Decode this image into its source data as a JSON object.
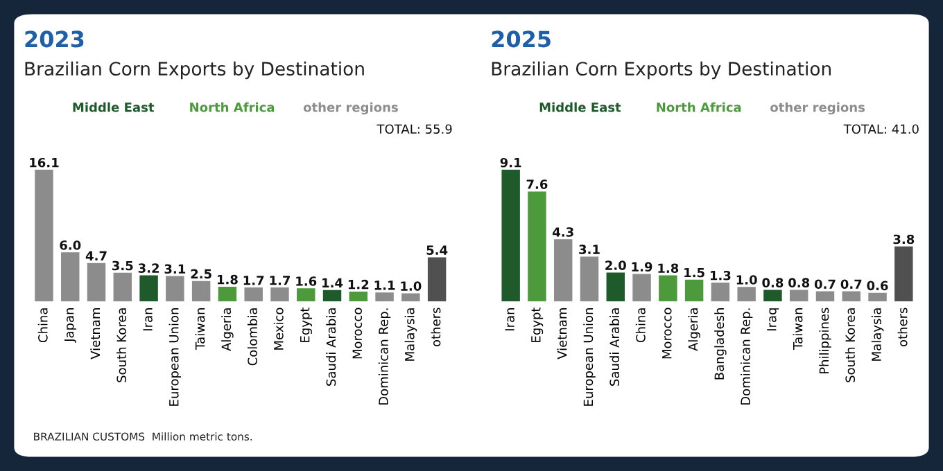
{
  "chart_data": [
    {
      "type": "bar",
      "title": "2023",
      "subtitle": "Brazilian Corn Exports by Destination",
      "categories": [
        "China",
        "Japan",
        "Vietnam",
        "South Korea",
        "Iran",
        "European Union",
        "Taiwan",
        "Algeria",
        "Colombia",
        "Mexico",
        "Egypt",
        "Saudi Arabia",
        "Morocco",
        "Dominican Rep.",
        "Malaysia",
        "others"
      ],
      "series": [
        {
          "name": "Middle East",
          "color": "#1f5a2a",
          "values": [
            null,
            null,
            null,
            null,
            3.2,
            null,
            null,
            null,
            null,
            null,
            null,
            1.4,
            null,
            null,
            null,
            null
          ],
          "value_labels": [
            null,
            null,
            null,
            null,
            "3.2",
            null,
            null,
            null,
            null,
            null,
            null,
            "1.4",
            null,
            null,
            null,
            null
          ]
        },
        {
          "name": "North Africa",
          "color": "#4c9a3c",
          "values": [
            null,
            null,
            null,
            null,
            null,
            null,
            null,
            1.8,
            null,
            null,
            1.6,
            null,
            1.2,
            null,
            null,
            null
          ],
          "value_labels": [
            null,
            null,
            null,
            null,
            null,
            null,
            null,
            "1.8",
            null,
            null,
            "1.6",
            null,
            "1.2",
            null,
            null,
            null
          ]
        },
        {
          "name": "other regions",
          "color": "#8c8c8c",
          "values": [
            16.1,
            6.0,
            4.7,
            3.5,
            null,
            3.1,
            2.5,
            null,
            1.7,
            1.7,
            null,
            null,
            null,
            1.1,
            1.0,
            null
          ],
          "value_labels": [
            "16.1",
            "6.0",
            "4.7",
            "3.5",
            null,
            "3.1",
            "2.5",
            null,
            "1.7",
            "1.7",
            null,
            null,
            null,
            "1.1",
            "1.0",
            null
          ]
        },
        {
          "color": "#505050",
          "values": [
            null,
            null,
            null,
            null,
            null,
            null,
            null,
            null,
            null,
            null,
            null,
            null,
            null,
            null,
            null,
            5.4
          ],
          "value_labels": [
            null,
            null,
            null,
            null,
            null,
            null,
            null,
            null,
            null,
            null,
            null,
            null,
            null,
            null,
            null,
            "5.4"
          ]
        }
      ],
      "annotations": [
        "TOTAL: 55.9",
        "BRAZILIAN CUSTOMS  Million metric tons."
      ]
    },
    {
      "type": "bar",
      "title": "2025",
      "subtitle": "Brazilian Corn Exports by Destination",
      "categories": [
        "Iran",
        "Egypt",
        "Vietnam",
        "European Union",
        "Saudi Arabia",
        "China",
        "Morocco",
        "Algeria",
        "Bangladesh",
        "Dominican Rep.",
        "Iraq",
        "Taiwan",
        "Philippines",
        "South Korea",
        "Malaysia",
        "others"
      ],
      "series": [
        {
          "name": "Middle East",
          "color": "#1f5a2a",
          "values": [
            9.1,
            null,
            null,
            null,
            2.0,
            null,
            null,
            null,
            null,
            null,
            0.8,
            null,
            null,
            null,
            null,
            null
          ],
          "value_labels": [
            "9.1",
            null,
            null,
            null,
            "2.0",
            null,
            null,
            null,
            null,
            null,
            "0.8",
            null,
            null,
            null,
            null,
            null
          ]
        },
        {
          "name": "North Africa",
          "color": "#4c9a3c",
          "values": [
            null,
            7.6,
            null,
            null,
            null,
            null,
            1.8,
            1.5,
            null,
            null,
            null,
            null,
            null,
            null,
            null,
            null
          ],
          "value_labels": [
            null,
            "7.6",
            null,
            null,
            null,
            null,
            "1.8",
            "1.5",
            null,
            null,
            null,
            null,
            null,
            null,
            null,
            null
          ]
        },
        {
          "name": "other regions",
          "color": "#8c8c8c",
          "values": [
            null,
            null,
            4.3,
            3.1,
            null,
            1.9,
            null,
            null,
            1.3,
            1.0,
            null,
            0.8,
            0.7,
            0.7,
            0.6,
            null
          ],
          "value_labels": [
            null,
            null,
            "4.3",
            "3.1",
            null,
            "1.9",
            null,
            null,
            "1.3",
            "1.0",
            null,
            "0.8",
            "0.7",
            "0.7",
            "0.6",
            null
          ]
        },
        {
          "color": "#505050",
          "values": [
            null,
            null,
            null,
            null,
            null,
            null,
            null,
            null,
            null,
            null,
            null,
            null,
            null,
            null,
            null,
            3.8
          ],
          "value_labels": [
            null,
            null,
            null,
            null,
            null,
            null,
            null,
            null,
            null,
            null,
            null,
            null,
            null,
            null,
            null,
            "3.8"
          ]
        }
      ],
      "annotations": [
        "TOTAL: 41.0"
      ]
    }
  ]
}
